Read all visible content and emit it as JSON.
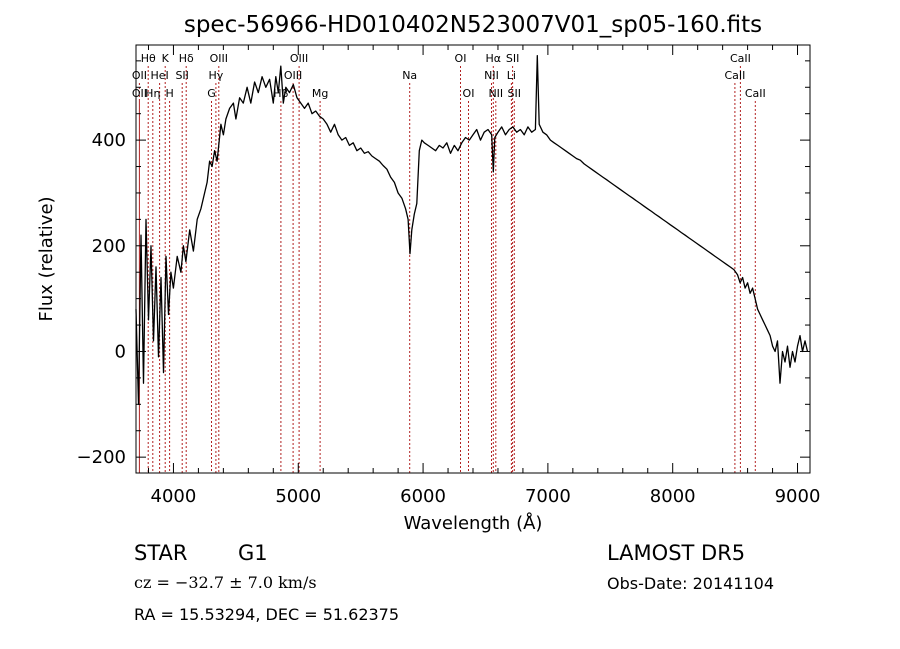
{
  "footer": {
    "object_class": "STAR",
    "subclass": "G1",
    "survey": "LAMOST DR5",
    "redshift_label": "cz = −32.7 ± 7.0 km/s",
    "obs_date_label": "Obs-Date: 20141104",
    "coords_label": "RA =  15.53294, DEC =  51.62375"
  },
  "chart_data": {
    "type": "line",
    "title": "spec-56966-HD010402N523007V01_sp05-160.fits",
    "xlabel": "Wavelength (Å)",
    "ylabel": "Flux (relative)",
    "xlim": [
      3700,
      9100
    ],
    "ylim": [
      -230,
      580
    ],
    "xticks": [
      4000,
      5000,
      6000,
      7000,
      8000,
      9000
    ],
    "yticks": [
      -200,
      0,
      200,
      400
    ],
    "grid": false,
    "line_color": "#000000",
    "marker_color": "#b22222",
    "spectrum": [
      [
        3700,
        80
      ],
      [
        3720,
        -100
      ],
      [
        3740,
        220
      ],
      [
        3760,
        -60
      ],
      [
        3780,
        250
      ],
      [
        3800,
        60
      ],
      [
        3820,
        200
      ],
      [
        3840,
        20
      ],
      [
        3860,
        160
      ],
      [
        3880,
        -10
      ],
      [
        3900,
        140
      ],
      [
        3920,
        -40
      ],
      [
        3940,
        180
      ],
      [
        3960,
        70
      ],
      [
        3980,
        150
      ],
      [
        4000,
        120
      ],
      [
        4030,
        180
      ],
      [
        4060,
        150
      ],
      [
        4080,
        200
      ],
      [
        4100,
        170
      ],
      [
        4130,
        230
      ],
      [
        4160,
        190
      ],
      [
        4190,
        250
      ],
      [
        4220,
        270
      ],
      [
        4250,
        300
      ],
      [
        4270,
        320
      ],
      [
        4290,
        360
      ],
      [
        4310,
        350
      ],
      [
        4330,
        380
      ],
      [
        4350,
        360
      ],
      [
        4380,
        430
      ],
      [
        4400,
        410
      ],
      [
        4420,
        440
      ],
      [
        4450,
        460
      ],
      [
        4480,
        470
      ],
      [
        4500,
        440
      ],
      [
        4530,
        480
      ],
      [
        4560,
        470
      ],
      [
        4590,
        500
      ],
      [
        4620,
        470
      ],
      [
        4650,
        510
      ],
      [
        4680,
        490
      ],
      [
        4710,
        520
      ],
      [
        4740,
        500
      ],
      [
        4770,
        515
      ],
      [
        4800,
        470
      ],
      [
        4820,
        520
      ],
      [
        4840,
        490
      ],
      [
        4860,
        540
      ],
      [
        4880,
        470
      ],
      [
        4900,
        500
      ],
      [
        4930,
        490
      ],
      [
        4960,
        505
      ],
      [
        4990,
        480
      ],
      [
        5020,
        470
      ],
      [
        5050,
        460
      ],
      [
        5080,
        470
      ],
      [
        5110,
        450
      ],
      [
        5140,
        455
      ],
      [
        5170,
        445
      ],
      [
        5200,
        440
      ],
      [
        5230,
        430
      ],
      [
        5260,
        415
      ],
      [
        5290,
        430
      ],
      [
        5320,
        410
      ],
      [
        5350,
        400
      ],
      [
        5380,
        405
      ],
      [
        5410,
        390
      ],
      [
        5440,
        395
      ],
      [
        5470,
        380
      ],
      [
        5500,
        385
      ],
      [
        5530,
        375
      ],
      [
        5560,
        378
      ],
      [
        5590,
        370
      ],
      [
        5620,
        365
      ],
      [
        5650,
        360
      ],
      [
        5680,
        352
      ],
      [
        5710,
        345
      ],
      [
        5740,
        330
      ],
      [
        5770,
        320
      ],
      [
        5800,
        300
      ],
      [
        5830,
        290
      ],
      [
        5860,
        270
      ],
      [
        5880,
        250
      ],
      [
        5895,
        185
      ],
      [
        5910,
        230
      ],
      [
        5930,
        260
      ],
      [
        5950,
        280
      ],
      [
        5970,
        380
      ],
      [
        5990,
        400
      ],
      [
        6010,
        395
      ],
      [
        6040,
        390
      ],
      [
        6070,
        385
      ],
      [
        6100,
        380
      ],
      [
        6130,
        390
      ],
      [
        6160,
        385
      ],
      [
        6190,
        395
      ],
      [
        6220,
        375
      ],
      [
        6250,
        390
      ],
      [
        6280,
        380
      ],
      [
        6310,
        395
      ],
      [
        6340,
        405
      ],
      [
        6370,
        400
      ],
      [
        6400,
        410
      ],
      [
        6430,
        420
      ],
      [
        6460,
        400
      ],
      [
        6490,
        415
      ],
      [
        6520,
        420
      ],
      [
        6550,
        410
      ],
      [
        6563,
        340
      ],
      [
        6575,
        405
      ],
      [
        6600,
        415
      ],
      [
        6630,
        425
      ],
      [
        6660,
        410
      ],
      [
        6690,
        420
      ],
      [
        6720,
        425
      ],
      [
        6750,
        415
      ],
      [
        6780,
        420
      ],
      [
        6810,
        410
      ],
      [
        6840,
        425
      ],
      [
        6870,
        415
      ],
      [
        6900,
        420
      ],
      [
        6915,
        560
      ],
      [
        6930,
        430
      ],
      [
        6960,
        415
      ],
      [
        6990,
        410
      ],
      [
        7020,
        400
      ],
      [
        7050,
        395
      ],
      [
        7080,
        390
      ],
      [
        7110,
        385
      ],
      [
        7140,
        380
      ],
      [
        7170,
        375
      ],
      [
        7200,
        370
      ],
      [
        7230,
        365
      ],
      [
        7260,
        362
      ],
      [
        7290,
        355
      ],
      [
        7320,
        350
      ],
      [
        7350,
        345
      ],
      [
        7380,
        340
      ],
      [
        7410,
        335
      ],
      [
        7440,
        330
      ],
      [
        7470,
        325
      ],
      [
        7500,
        320
      ],
      [
        7530,
        315
      ],
      [
        7560,
        310
      ],
      [
        7590,
        305
      ],
      [
        7620,
        300
      ],
      [
        7650,
        295
      ],
      [
        7680,
        290
      ],
      [
        7710,
        285
      ],
      [
        7740,
        280
      ],
      [
        7770,
        275
      ],
      [
        7800,
        270
      ],
      [
        7830,
        265
      ],
      [
        7860,
        260
      ],
      [
        7890,
        255
      ],
      [
        7920,
        250
      ],
      [
        7950,
        245
      ],
      [
        7980,
        240
      ],
      [
        8010,
        235
      ],
      [
        8040,
        230
      ],
      [
        8070,
        225
      ],
      [
        8100,
        220
      ],
      [
        8130,
        215
      ],
      [
        8160,
        210
      ],
      [
        8190,
        205
      ],
      [
        8220,
        200
      ],
      [
        8250,
        195
      ],
      [
        8280,
        190
      ],
      [
        8310,
        185
      ],
      [
        8340,
        180
      ],
      [
        8370,
        175
      ],
      [
        8400,
        170
      ],
      [
        8430,
        165
      ],
      [
        8460,
        160
      ],
      [
        8490,
        155
      ],
      [
        8520,
        145
      ],
      [
        8540,
        130
      ],
      [
        8560,
        140
      ],
      [
        8580,
        120
      ],
      [
        8600,
        130
      ],
      [
        8620,
        110
      ],
      [
        8640,
        120
      ],
      [
        8660,
        100
      ],
      [
        8680,
        80
      ],
      [
        8700,
        70
      ],
      [
        8720,
        60
      ],
      [
        8740,
        50
      ],
      [
        8760,
        40
      ],
      [
        8780,
        30
      ],
      [
        8800,
        10
      ],
      [
        8820,
        0
      ],
      [
        8840,
        20
      ],
      [
        8860,
        -60
      ],
      [
        8880,
        0
      ],
      [
        8900,
        -20
      ],
      [
        8920,
        10
      ],
      [
        8940,
        -30
      ],
      [
        8960,
        0
      ],
      [
        8980,
        -20
      ],
      [
        9000,
        10
      ],
      [
        9020,
        30
      ],
      [
        9040,
        0
      ],
      [
        9060,
        20
      ],
      [
        9080,
        0
      ]
    ],
    "line_markers": [
      {
        "label": "Hθ",
        "wavelength": 3798,
        "row": 0
      },
      {
        "label": "OII",
        "wavelength": 3727,
        "row": 1
      },
      {
        "label": "OII",
        "wavelength": 3727,
        "row": 2
      },
      {
        "label": "Hη",
        "wavelength": 3835,
        "row": 2
      },
      {
        "label": "K",
        "wavelength": 3934,
        "row": 0
      },
      {
        "label": "HeI",
        "wavelength": 3889,
        "row": 1
      },
      {
        "label": "H",
        "wavelength": 3969,
        "row": 2
      },
      {
        "label": "SII",
        "wavelength": 4070,
        "row": 1
      },
      {
        "label": "Hδ",
        "wavelength": 4102,
        "row": 0
      },
      {
        "label": "OIII",
        "wavelength": 4363,
        "row": 0
      },
      {
        "label": "Hγ",
        "wavelength": 4340,
        "row": 1
      },
      {
        "label": "G",
        "wavelength": 4305,
        "row": 2
      },
      {
        "label": "OIII",
        "wavelength": 5007,
        "row": 0
      },
      {
        "label": "OIII",
        "wavelength": 4959,
        "row": 1
      },
      {
        "label": "Hβ",
        "wavelength": 4861,
        "row": 2
      },
      {
        "label": "Mg",
        "wavelength": 5175,
        "row": 2
      },
      {
        "label": "Na",
        "wavelength": 5893,
        "row": 1
      },
      {
        "label": "OI",
        "wavelength": 6300,
        "row": 0
      },
      {
        "label": "OI",
        "wavelength": 6364,
        "row": 2
      },
      {
        "label": "Hα",
        "wavelength": 6563,
        "row": 0
      },
      {
        "label": "NII",
        "wavelength": 6548,
        "row": 1
      },
      {
        "label": "NII",
        "wavelength": 6583,
        "row": 2
      },
      {
        "label": "SII",
        "wavelength": 6717,
        "row": 0
      },
      {
        "label": "Li",
        "wavelength": 6708,
        "row": 1
      },
      {
        "label": "SII",
        "wavelength": 6731,
        "row": 2
      },
      {
        "label": "CaII",
        "wavelength": 8542,
        "row": 0
      },
      {
        "label": "CaII",
        "wavelength": 8498,
        "row": 1
      },
      {
        "label": "CaII",
        "wavelength": 8662,
        "row": 2
      }
    ]
  }
}
